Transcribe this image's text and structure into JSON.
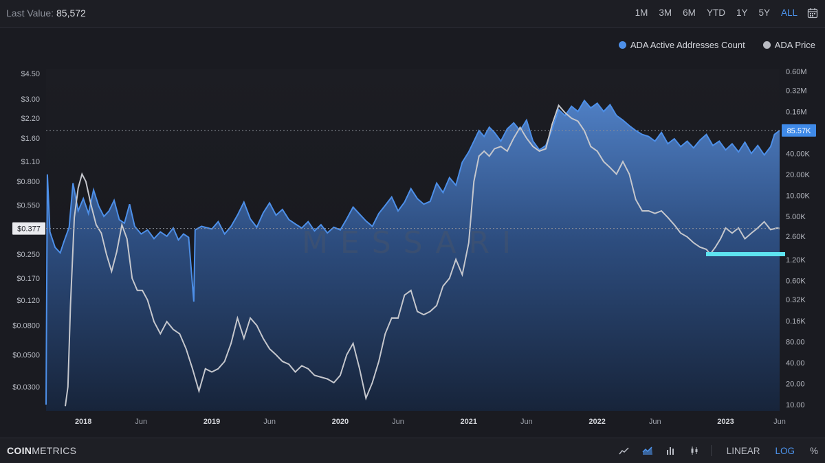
{
  "header": {
    "last_value_label": "Last Value:",
    "last_value": "85,572",
    "ranges": [
      "1M",
      "3M",
      "6M",
      "YTD",
      "1Y",
      "5Y",
      "ALL"
    ],
    "active_range": "ALL"
  },
  "legend": [
    {
      "label": "ADA Active Addresses Count",
      "color": "#4d8fe8"
    },
    {
      "label": "ADA Price",
      "color": "#b9bbc2"
    }
  ],
  "footer": {
    "logo_bold": "COIN",
    "logo_rest": "METRICS",
    "scale_linear": "LINEAR",
    "scale_log": "LOG",
    "scale_pct": "%"
  },
  "watermark": "MESSARI",
  "chart_data": {
    "type": "area",
    "y_left_scale": "log",
    "y_right_scale": "log",
    "left_axis_ticks": [
      "$4.50",
      "$3.00",
      "$2.20",
      "$1.60",
      "$1.10",
      "$0.800",
      "$0.550",
      "$0.250",
      "$0.170",
      "$0.120",
      "$0.0800",
      "$0.0500",
      "$0.0300"
    ],
    "left_axis_values": [
      4.5,
      3.0,
      2.2,
      1.6,
      1.1,
      0.8,
      0.55,
      0.25,
      0.17,
      0.12,
      0.08,
      0.05,
      0.03
    ],
    "left_axis_marker": "$0.377",
    "left_axis_marker_value": 0.377,
    "right_axis_ticks": [
      "0.60M",
      "0.32M",
      "0.16M",
      "80.00K",
      "40.00K",
      "20.00K",
      "10.00K",
      "5.00K",
      "2.60K",
      "1.20K",
      "0.60K",
      "0.32K",
      "0.16K",
      "80.00",
      "40.00",
      "20.00",
      "10.00"
    ],
    "right_axis_values": [
      600000,
      320000,
      160000,
      80000,
      40000,
      20000,
      10000,
      5000,
      2600,
      1200,
      600,
      320,
      160,
      80,
      40,
      20,
      10
    ],
    "right_axis_marker": "85.57K",
    "right_axis_marker_value": 85572,
    "x_ticks": [
      {
        "label": "2018",
        "date": 2018.0,
        "year": true
      },
      {
        "label": "Jun",
        "date": 2018.45,
        "year": false
      },
      {
        "label": "2019",
        "date": 2019.0,
        "year": true
      },
      {
        "label": "Jun",
        "date": 2019.45,
        "year": false
      },
      {
        "label": "2020",
        "date": 2020.0,
        "year": true
      },
      {
        "label": "Jun",
        "date": 2020.45,
        "year": false
      },
      {
        "label": "2021",
        "date": 2021.0,
        "year": true
      },
      {
        "label": "Jun",
        "date": 2021.45,
        "year": false
      },
      {
        "label": "2022",
        "date": 2022.0,
        "year": true
      },
      {
        "label": "Jun",
        "date": 2022.45,
        "year": false
      },
      {
        "label": "2023",
        "date": 2023.0,
        "year": true
      },
      {
        "label": "Jun",
        "date": 2023.42,
        "year": false
      }
    ],
    "x_range": [
      2017.71,
      2023.42
    ],
    "series": [
      {
        "name": "ADA Active Addresses Count",
        "axis": "right",
        "color": "#4d8fe8",
        "points": [
          [
            2017.71,
            10
          ],
          [
            2017.72,
            20000
          ],
          [
            2017.74,
            3000
          ],
          [
            2017.78,
            1800
          ],
          [
            2017.82,
            1500
          ],
          [
            2017.85,
            2200
          ],
          [
            2017.89,
            3500
          ],
          [
            2017.92,
            15000
          ],
          [
            2017.96,
            6000
          ],
          [
            2018.0,
            9000
          ],
          [
            2018.04,
            5500
          ],
          [
            2018.08,
            12000
          ],
          [
            2018.12,
            7000
          ],
          [
            2018.16,
            5000
          ],
          [
            2018.2,
            6000
          ],
          [
            2018.24,
            8500
          ],
          [
            2018.28,
            4500
          ],
          [
            2018.32,
            4000
          ],
          [
            2018.36,
            7500
          ],
          [
            2018.4,
            3600
          ],
          [
            2018.45,
            2800
          ],
          [
            2018.5,
            3200
          ],
          [
            2018.55,
            2400
          ],
          [
            2018.6,
            3000
          ],
          [
            2018.65,
            2600
          ],
          [
            2018.7,
            3400
          ],
          [
            2018.74,
            2300
          ],
          [
            2018.78,
            2800
          ],
          [
            2018.82,
            2500
          ],
          [
            2018.86,
            300
          ],
          [
            2018.87,
            3200
          ],
          [
            2018.92,
            3600
          ],
          [
            2019.0,
            3300
          ],
          [
            2019.05,
            4200
          ],
          [
            2019.1,
            2800
          ],
          [
            2019.15,
            3600
          ],
          [
            2019.2,
            5200
          ],
          [
            2019.25,
            8000
          ],
          [
            2019.3,
            4600
          ],
          [
            2019.35,
            3500
          ],
          [
            2019.4,
            5600
          ],
          [
            2019.45,
            7800
          ],
          [
            2019.5,
            5200
          ],
          [
            2019.55,
            6300
          ],
          [
            2019.6,
            4500
          ],
          [
            2019.65,
            3900
          ],
          [
            2019.7,
            3400
          ],
          [
            2019.75,
            4200
          ],
          [
            2019.8,
            3100
          ],
          [
            2019.85,
            3800
          ],
          [
            2019.9,
            2900
          ],
          [
            2019.95,
            3500
          ],
          [
            2020.0,
            3200
          ],
          [
            2020.05,
            4600
          ],
          [
            2020.1,
            6800
          ],
          [
            2020.15,
            5400
          ],
          [
            2020.2,
            4300
          ],
          [
            2020.25,
            3600
          ],
          [
            2020.3,
            5500
          ],
          [
            2020.35,
            7200
          ],
          [
            2020.4,
            9500
          ],
          [
            2020.45,
            6000
          ],
          [
            2020.5,
            8000
          ],
          [
            2020.55,
            12500
          ],
          [
            2020.6,
            9000
          ],
          [
            2020.65,
            7500
          ],
          [
            2020.7,
            8200
          ],
          [
            2020.75,
            15000
          ],
          [
            2020.8,
            11000
          ],
          [
            2020.85,
            18000
          ],
          [
            2020.9,
            14000
          ],
          [
            2020.95,
            30000
          ],
          [
            2021.0,
            42000
          ],
          [
            2021.04,
            60000
          ],
          [
            2021.08,
            85000
          ],
          [
            2021.12,
            70000
          ],
          [
            2021.16,
            95000
          ],
          [
            2021.2,
            80000
          ],
          [
            2021.25,
            60000
          ],
          [
            2021.3,
            90000
          ],
          [
            2021.35,
            110000
          ],
          [
            2021.4,
            85000
          ],
          [
            2021.45,
            120000
          ],
          [
            2021.5,
            60000
          ],
          [
            2021.55,
            45000
          ],
          [
            2021.6,
            52000
          ],
          [
            2021.65,
            90000
          ],
          [
            2021.7,
            170000
          ],
          [
            2021.75,
            140000
          ],
          [
            2021.8,
            190000
          ],
          [
            2021.85,
            160000
          ],
          [
            2021.9,
            230000
          ],
          [
            2021.95,
            180000
          ],
          [
            2022.0,
            210000
          ],
          [
            2022.05,
            160000
          ],
          [
            2022.1,
            200000
          ],
          [
            2022.15,
            140000
          ],
          [
            2022.2,
            120000
          ],
          [
            2022.25,
            100000
          ],
          [
            2022.3,
            85000
          ],
          [
            2022.35,
            75000
          ],
          [
            2022.4,
            70000
          ],
          [
            2022.45,
            60000
          ],
          [
            2022.5,
            80000
          ],
          [
            2022.55,
            55000
          ],
          [
            2022.6,
            65000
          ],
          [
            2022.65,
            50000
          ],
          [
            2022.7,
            60000
          ],
          [
            2022.75,
            48000
          ],
          [
            2022.8,
            62000
          ],
          [
            2022.85,
            75000
          ],
          [
            2022.9,
            52000
          ],
          [
            2022.95,
            60000
          ],
          [
            2023.0,
            45000
          ],
          [
            2023.05,
            55000
          ],
          [
            2023.1,
            42000
          ],
          [
            2023.15,
            58000
          ],
          [
            2023.2,
            40000
          ],
          [
            2023.25,
            52000
          ],
          [
            2023.3,
            38000
          ],
          [
            2023.35,
            50000
          ],
          [
            2023.38,
            75000
          ],
          [
            2023.42,
            85572
          ]
        ]
      },
      {
        "name": "ADA Price",
        "axis": "left",
        "color": "#c5c7cd",
        "points": [
          [
            2017.86,
            0.022
          ],
          [
            2017.88,
            0.03
          ],
          [
            2017.9,
            0.11
          ],
          [
            2017.93,
            0.45
          ],
          [
            2017.96,
            0.72
          ],
          [
            2017.99,
            0.9
          ],
          [
            2018.02,
            0.8
          ],
          [
            2018.06,
            0.55
          ],
          [
            2018.1,
            0.4
          ],
          [
            2018.14,
            0.35
          ],
          [
            2018.18,
            0.25
          ],
          [
            2018.22,
            0.19
          ],
          [
            2018.26,
            0.26
          ],
          [
            2018.3,
            0.4
          ],
          [
            2018.34,
            0.32
          ],
          [
            2018.38,
            0.17
          ],
          [
            2018.42,
            0.14
          ],
          [
            2018.46,
            0.14
          ],
          [
            2018.5,
            0.12
          ],
          [
            2018.55,
            0.085
          ],
          [
            2018.6,
            0.07
          ],
          [
            2018.65,
            0.085
          ],
          [
            2018.7,
            0.075
          ],
          [
            2018.75,
            0.07
          ],
          [
            2018.8,
            0.055
          ],
          [
            2018.85,
            0.04
          ],
          [
            2018.9,
            0.028
          ],
          [
            2018.95,
            0.04
          ],
          [
            2019.0,
            0.038
          ],
          [
            2019.05,
            0.04
          ],
          [
            2019.1,
            0.045
          ],
          [
            2019.15,
            0.06
          ],
          [
            2019.2,
            0.09
          ],
          [
            2019.25,
            0.065
          ],
          [
            2019.3,
            0.09
          ],
          [
            2019.35,
            0.08
          ],
          [
            2019.4,
            0.065
          ],
          [
            2019.45,
            0.055
          ],
          [
            2019.5,
            0.05
          ],
          [
            2019.55,
            0.045
          ],
          [
            2019.6,
            0.043
          ],
          [
            2019.65,
            0.038
          ],
          [
            2019.7,
            0.042
          ],
          [
            2019.75,
            0.04
          ],
          [
            2019.8,
            0.036
          ],
          [
            2019.85,
            0.035
          ],
          [
            2019.9,
            0.034
          ],
          [
            2019.95,
            0.032
          ],
          [
            2020.0,
            0.036
          ],
          [
            2020.05,
            0.05
          ],
          [
            2020.1,
            0.06
          ],
          [
            2020.15,
            0.04
          ],
          [
            2020.2,
            0.025
          ],
          [
            2020.25,
            0.032
          ],
          [
            2020.3,
            0.045
          ],
          [
            2020.35,
            0.07
          ],
          [
            2020.4,
            0.09
          ],
          [
            2020.45,
            0.09
          ],
          [
            2020.5,
            0.13
          ],
          [
            2020.55,
            0.14
          ],
          [
            2020.6,
            0.1
          ],
          [
            2020.65,
            0.095
          ],
          [
            2020.7,
            0.1
          ],
          [
            2020.75,
            0.11
          ],
          [
            2020.8,
            0.15
          ],
          [
            2020.85,
            0.17
          ],
          [
            2020.9,
            0.23
          ],
          [
            2020.95,
            0.18
          ],
          [
            2021.0,
            0.3
          ],
          [
            2021.04,
            0.8
          ],
          [
            2021.08,
            1.2
          ],
          [
            2021.12,
            1.3
          ],
          [
            2021.16,
            1.2
          ],
          [
            2021.2,
            1.35
          ],
          [
            2021.25,
            1.4
          ],
          [
            2021.3,
            1.3
          ],
          [
            2021.35,
            1.6
          ],
          [
            2021.4,
            1.9
          ],
          [
            2021.45,
            1.6
          ],
          [
            2021.5,
            1.4
          ],
          [
            2021.55,
            1.3
          ],
          [
            2021.6,
            1.35
          ],
          [
            2021.65,
            2.0
          ],
          [
            2021.7,
            2.7
          ],
          [
            2021.75,
            2.4
          ],
          [
            2021.8,
            2.2
          ],
          [
            2021.85,
            2.1
          ],
          [
            2021.9,
            1.8
          ],
          [
            2021.95,
            1.4
          ],
          [
            2022.0,
            1.3
          ],
          [
            2022.05,
            1.1
          ],
          [
            2022.1,
            1.0
          ],
          [
            2022.15,
            0.9
          ],
          [
            2022.2,
            1.1
          ],
          [
            2022.25,
            0.9
          ],
          [
            2022.3,
            0.6
          ],
          [
            2022.35,
            0.5
          ],
          [
            2022.4,
            0.5
          ],
          [
            2022.45,
            0.48
          ],
          [
            2022.5,
            0.5
          ],
          [
            2022.55,
            0.45
          ],
          [
            2022.6,
            0.4
          ],
          [
            2022.65,
            0.35
          ],
          [
            2022.7,
            0.33
          ],
          [
            2022.75,
            0.3
          ],
          [
            2022.8,
            0.28
          ],
          [
            2022.85,
            0.27
          ],
          [
            2022.88,
            0.25
          ],
          [
            2022.92,
            0.28
          ],
          [
            2022.96,
            0.32
          ],
          [
            2023.0,
            0.38
          ],
          [
            2023.05,
            0.35
          ],
          [
            2023.1,
            0.38
          ],
          [
            2023.15,
            0.32
          ],
          [
            2023.2,
            0.35
          ],
          [
            2023.25,
            0.38
          ],
          [
            2023.3,
            0.42
          ],
          [
            2023.35,
            0.37
          ],
          [
            2023.4,
            0.38
          ],
          [
            2023.42,
            0.377
          ]
        ]
      }
    ],
    "grid": false
  }
}
